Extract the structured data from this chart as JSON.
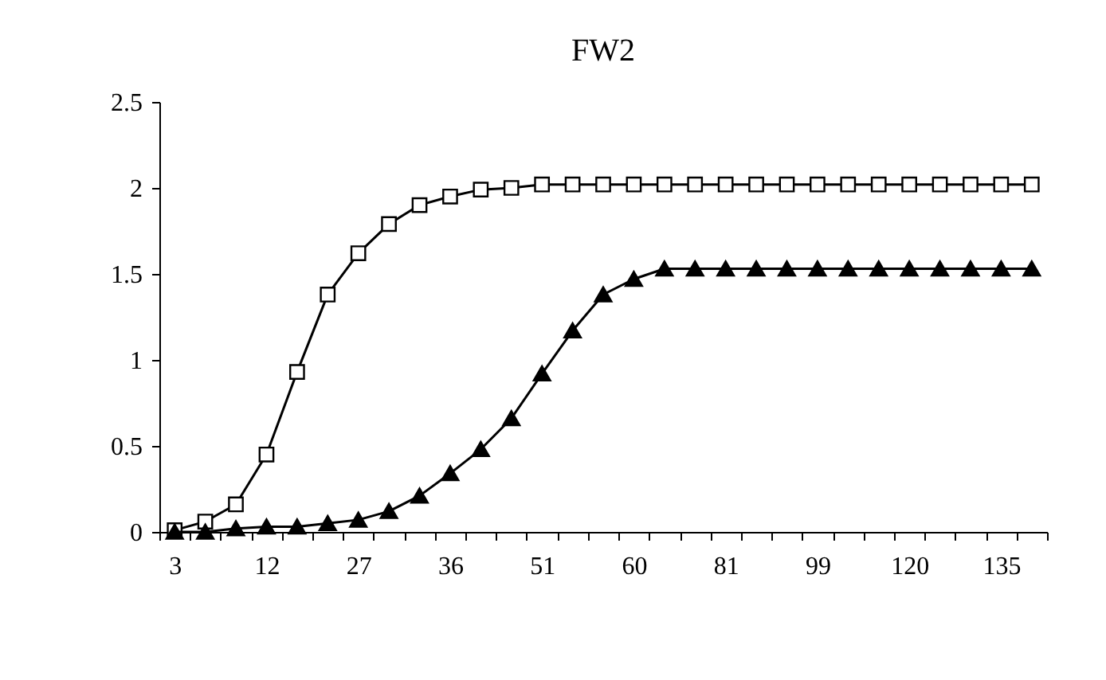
{
  "chart_data": {
    "type": "line",
    "title": "FW2",
    "categories": [
      "3",
      null,
      null,
      "12",
      null,
      null,
      "27",
      null,
      null,
      "36",
      null,
      null,
      "51",
      null,
      null,
      "60",
      null,
      null,
      "81",
      null,
      null,
      "99",
      null,
      null,
      "120",
      null,
      null,
      "135",
      null
    ],
    "series": [
      {
        "color": "#000000",
        "marker": "square",
        "values": [
          0.01,
          0.06,
          0.16,
          0.45,
          0.93,
          1.38,
          1.62,
          1.79,
          1.9,
          1.95,
          1.99,
          2.0,
          2.02,
          2.02,
          2.02,
          2.02,
          2.02,
          2.02,
          2.02,
          2.02,
          2.02,
          2.02,
          2.02,
          2.02,
          2.02,
          2.02,
          2.02,
          2.02,
          2.02
        ]
      },
      {
        "color": "#000000",
        "marker": "triangle",
        "values": [
          0,
          0,
          0.02,
          0.03,
          0.03,
          0.05,
          0.07,
          0.12,
          0.21,
          0.34,
          0.48,
          0.66,
          0.92,
          1.17,
          1.38,
          1.47,
          1.53,
          1.53,
          1.53,
          1.53,
          1.53,
          1.53,
          1.53,
          1.53,
          1.53,
          1.53,
          1.53,
          1.53,
          1.53
        ]
      }
    ],
    "ylim": [
      0,
      2.5
    ],
    "yticks": [
      0,
      0.5,
      1,
      1.5,
      2,
      2.5
    ],
    "grid": false
  }
}
